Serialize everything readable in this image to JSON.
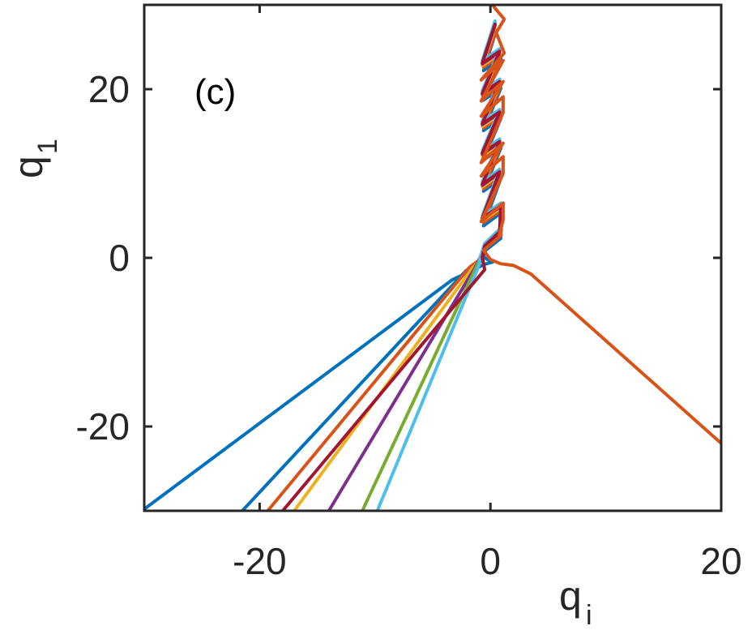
{
  "chart_data": {
    "type": "line",
    "title": "",
    "panel_label": "(c)",
    "xlabel": {
      "main": "q",
      "sub": "i"
    },
    "ylabel": {
      "main": "q",
      "sub": "1"
    },
    "xlim": [
      -30,
      20
    ],
    "ylim": [
      -30,
      30
    ],
    "xticks": [
      -20,
      0,
      20
    ],
    "xtick_labels": [
      "-20",
      "0",
      "20"
    ],
    "yticks": [
      -20,
      0,
      20
    ],
    "ytick_labels": [
      "-20",
      "0",
      "20"
    ],
    "grid": false,
    "legend": "none",
    "series": [
      {
        "color": "#0072BD",
        "points": [
          [
            -30,
            -29.8
          ],
          [
            -3.3,
            -2.6
          ],
          [
            -1.4,
            -1.4
          ],
          [
            -0.6,
            -0.8
          ],
          [
            0.2,
            -0.5
          ],
          [
            -0.4,
            -0.1
          ],
          [
            -0.8,
            0.4
          ]
        ]
      },
      {
        "color": "#0072BD",
        "points": [
          [
            -21.5,
            -30
          ],
          [
            -2.1,
            -1.5
          ],
          [
            -0.8,
            -0.4
          ],
          [
            -0.4,
            0.9
          ],
          [
            0.9,
            2.3
          ],
          [
            1.0,
            5.4
          ],
          [
            -0.6,
            3.8
          ],
          [
            0.9,
            9.4
          ],
          [
            -0.6,
            7.9
          ],
          [
            0.9,
            13.0
          ],
          [
            -0.6,
            11.6
          ],
          [
            0.9,
            16.5
          ],
          [
            -0.6,
            15.1
          ],
          [
            0.9,
            20.1
          ],
          [
            -0.6,
            18.7
          ],
          [
            0.9,
            23.6
          ],
          [
            -0.6,
            22.2
          ],
          [
            0.4,
            26.5
          ]
        ]
      },
      {
        "color": "#D95319",
        "points": [
          [
            -19.3,
            -30
          ],
          [
            -1.8,
            -1.1
          ],
          [
            -0.8,
            -0.1
          ],
          [
            -0.4,
            1.2
          ],
          [
            0.9,
            2.6
          ],
          [
            1.0,
            5.7
          ],
          [
            -0.6,
            4.2
          ],
          [
            0.9,
            9.7
          ],
          [
            -0.6,
            8.2
          ],
          [
            0.9,
            13.3
          ],
          [
            -0.6,
            11.9
          ],
          [
            0.9,
            16.8
          ],
          [
            -0.6,
            15.4
          ],
          [
            0.9,
            20.4
          ],
          [
            -0.6,
            19.0
          ],
          [
            0.9,
            24.0
          ],
          [
            -0.6,
            22.6
          ],
          [
            0.5,
            27.0
          ]
        ]
      },
      {
        "color": "#EDB120",
        "points": [
          [
            -17.0,
            -30
          ],
          [
            -1.6,
            -1.3
          ],
          [
            -0.9,
            -0.2
          ],
          [
            -0.5,
            1.0
          ],
          [
            0.8,
            2.8
          ],
          [
            0.9,
            5.9
          ],
          [
            -0.7,
            4.4
          ],
          [
            0.8,
            9.9
          ],
          [
            -0.7,
            8.4
          ],
          [
            0.8,
            13.5
          ],
          [
            -0.7,
            12.1
          ],
          [
            0.8,
            17.0
          ],
          [
            -0.7,
            15.6
          ],
          [
            0.8,
            20.6
          ],
          [
            -0.7,
            19.2
          ],
          [
            0.8,
            24.2
          ],
          [
            -0.7,
            22.8
          ],
          [
            0.4,
            27.3
          ]
        ]
      },
      {
        "color": "#7E2F8E",
        "points": [
          [
            -14.0,
            -30
          ],
          [
            -1.4,
            -1.3
          ],
          [
            -0.9,
            0.0
          ],
          [
            -0.5,
            1.3
          ],
          [
            0.8,
            3.0
          ],
          [
            0.9,
            6.1
          ],
          [
            -0.7,
            4.6
          ],
          [
            0.8,
            10.1
          ],
          [
            -0.7,
            8.6
          ],
          [
            0.8,
            13.7
          ],
          [
            -0.7,
            12.3
          ],
          [
            0.8,
            17.2
          ],
          [
            -0.7,
            15.8
          ],
          [
            0.8,
            20.8
          ],
          [
            -0.7,
            19.4
          ],
          [
            0.8,
            24.4
          ],
          [
            -0.7,
            23.0
          ],
          [
            0.4,
            27.6
          ]
        ]
      },
      {
        "color": "#77AC30",
        "points": [
          [
            -11.1,
            -30
          ],
          [
            -1.2,
            -1.0
          ],
          [
            -0.8,
            0.2
          ],
          [
            -0.5,
            1.5
          ],
          [
            0.8,
            3.2
          ],
          [
            0.9,
            6.3
          ],
          [
            -0.7,
            4.8
          ],
          [
            0.8,
            10.3
          ],
          [
            -0.7,
            8.8
          ],
          [
            0.8,
            13.9
          ],
          [
            -0.7,
            12.5
          ],
          [
            0.8,
            17.4
          ],
          [
            -0.7,
            16.0
          ],
          [
            0.8,
            21.0
          ],
          [
            -0.7,
            19.6
          ],
          [
            0.8,
            24.6
          ],
          [
            -0.7,
            23.2
          ],
          [
            0.4,
            27.9
          ]
        ]
      },
      {
        "color": "#4DBEEE",
        "points": [
          [
            -9.8,
            -30
          ],
          [
            -1.0,
            -0.9
          ],
          [
            -0.8,
            0.4
          ],
          [
            -0.5,
            1.7
          ],
          [
            0.8,
            3.4
          ],
          [
            0.9,
            6.5
          ],
          [
            -0.7,
            5.0
          ],
          [
            0.8,
            10.5
          ],
          [
            -0.7,
            9.0
          ],
          [
            0.8,
            14.1
          ],
          [
            -0.7,
            12.7
          ],
          [
            0.8,
            17.6
          ],
          [
            -0.7,
            16.2
          ],
          [
            0.8,
            21.2
          ],
          [
            -0.7,
            19.8
          ],
          [
            0.8,
            24.8
          ],
          [
            -0.7,
            23.4
          ],
          [
            0.4,
            28.1
          ]
        ]
      },
      {
        "color": "#A2142F",
        "points": [
          [
            -18.0,
            -30
          ],
          [
            -0.5,
            -1.4
          ],
          [
            -0.7,
            0.1
          ],
          [
            -0.5,
            1.4
          ],
          [
            0.8,
            3.1
          ],
          [
            0.9,
            6.2
          ],
          [
            -0.7,
            4.7
          ],
          [
            0.8,
            10.2
          ],
          [
            -0.7,
            8.7
          ],
          [
            0.8,
            13.8
          ],
          [
            -0.7,
            12.4
          ],
          [
            0.8,
            17.3
          ],
          [
            -0.7,
            15.9
          ],
          [
            0.8,
            20.9
          ],
          [
            -0.7,
            19.5
          ],
          [
            0.8,
            24.5
          ],
          [
            -0.7,
            23.1
          ],
          [
            0.4,
            27.7
          ]
        ]
      },
      {
        "color": "#D95319",
        "points": [
          [
            20,
            -22.0
          ],
          [
            3.5,
            -1.9
          ],
          [
            2.0,
            -0.9
          ],
          [
            0.9,
            -0.7
          ],
          [
            0.0,
            -0.2
          ],
          [
            -0.6,
            0.9
          ],
          [
            0.7,
            2.4
          ],
          [
            1.1,
            4.5
          ],
          [
            1.1,
            6.5
          ],
          [
            -0.8,
            4.3
          ],
          [
            1.1,
            10.0
          ],
          [
            1.1,
            12.0
          ],
          [
            -0.8,
            9.7
          ],
          [
            1.1,
            13.6
          ],
          [
            -0.8,
            11.3
          ],
          [
            1.1,
            17.2
          ],
          [
            1.1,
            19.1
          ],
          [
            -0.8,
            16.8
          ],
          [
            1.1,
            20.9
          ],
          [
            -0.8,
            18.6
          ],
          [
            1.1,
            23.4
          ],
          [
            -0.8,
            21.1
          ],
          [
            1.2,
            24.3
          ],
          [
            0.5,
            26.7
          ],
          [
            1.2,
            28.3
          ],
          [
            0.4,
            29.6
          ],
          [
            0.2,
            30
          ]
        ]
      }
    ]
  }
}
